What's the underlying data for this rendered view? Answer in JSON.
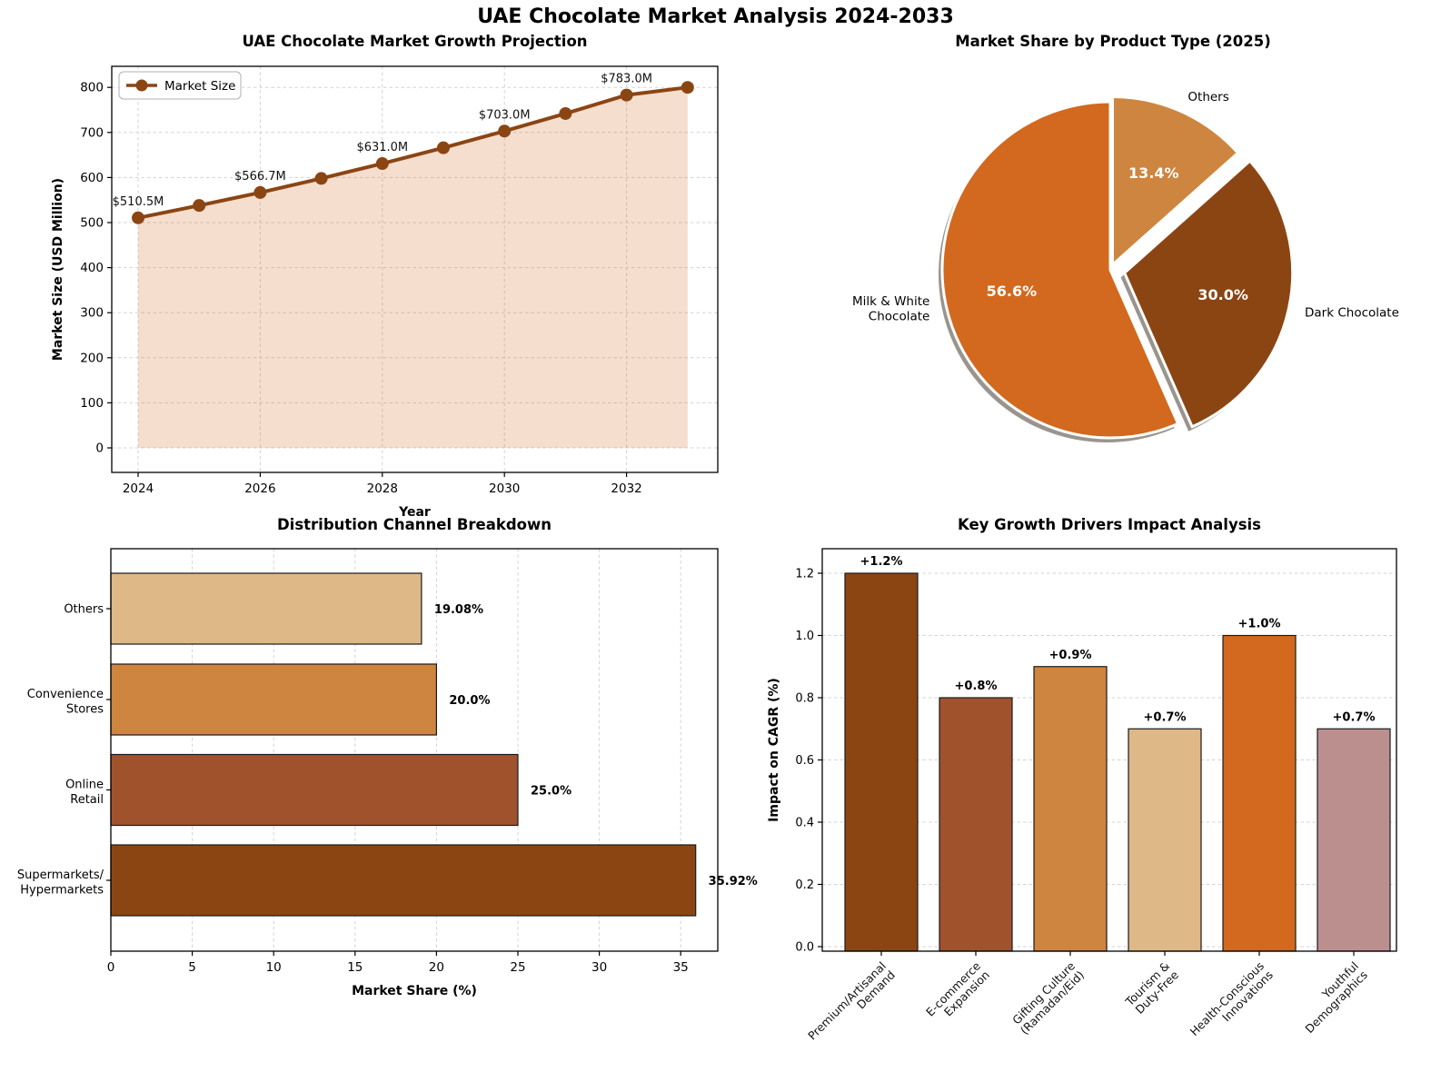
{
  "page_title": "UAE Chocolate Market Analysis 2024-2033",
  "chart_data": [
    {
      "type": "area",
      "title": "UAE Chocolate Market Growth Projection",
      "xlabel": "Year",
      "ylabel": "Market Size (USD Million)",
      "legend": [
        "Market Size"
      ],
      "x": [
        2024,
        2025,
        2026,
        2027,
        2028,
        2029,
        2030,
        2031,
        2032,
        2033
      ],
      "values": [
        510.5,
        538.0,
        566.7,
        598.0,
        631.0,
        666.0,
        703.0,
        742.0,
        783.0,
        800.0
      ],
      "annotations": [
        {
          "x": 2024,
          "text": "$510.5M"
        },
        {
          "x": 2026,
          "text": "$566.7M"
        },
        {
          "x": 2028,
          "text": "$631.0M"
        },
        {
          "x": 2030,
          "text": "$703.0M"
        },
        {
          "x": 2032,
          "text": "$783.0M"
        }
      ],
      "xticks": [
        2024,
        2026,
        2028,
        2030,
        2032
      ],
      "yticks": [
        0,
        100,
        200,
        300,
        400,
        500,
        600,
        700,
        800
      ],
      "ylim": [
        -55,
        846
      ],
      "grid": true,
      "legend_position": "upper left",
      "line_color": "#8B4513",
      "fill_color": "rgba(210,105,30,0.22)"
    },
    {
      "type": "pie",
      "title": "Market Share by Product Type (2025)",
      "labels": [
        "Others",
        "Dark Chocolate",
        "Milk & White\nChocolate"
      ],
      "values": [
        13.4,
        30.0,
        56.6
      ],
      "pct_labels": [
        "13.4%",
        "30.0%",
        "56.6%"
      ],
      "colors": [
        "#CD853F",
        "#8B4513",
        "#D2691E"
      ],
      "explode": [
        6,
        16,
        0
      ],
      "start_angle": 90,
      "direction": "clockwise",
      "shadow": true,
      "pct_color": "#ffffff"
    },
    {
      "type": "barh",
      "title": "Distribution Channel Breakdown",
      "xlabel": "Market Share (%)",
      "categories": [
        "Others",
        "Convenience\nStores",
        "Online\nRetail",
        "Supermarkets/\nHypermarkets"
      ],
      "values": [
        19.08,
        20.0,
        25.0,
        35.92
      ],
      "value_labels": [
        "19.08%",
        "20.0%",
        "25.0%",
        "35.92%"
      ],
      "colors": [
        "#DEB887",
        "#CD853F",
        "#A0522D",
        "#8B4513"
      ],
      "xticks": [
        0,
        5,
        10,
        15,
        20,
        25,
        30,
        35
      ],
      "xlim": [
        0,
        37.3
      ],
      "grid": true
    },
    {
      "type": "bar",
      "title": "Key Growth Drivers Impact Analysis",
      "ylabel": "Impact on CAGR (%)",
      "categories": [
        "Premium/Artisanal\nDemand",
        "E-commerce\nExpansion",
        "Gifting Culture\n(Ramadan/Eid)",
        "Tourism &\nDuty-Free",
        "Health-Conscious\nInnovations",
        "Youthful\nDemographics"
      ],
      "values": [
        1.2,
        0.8,
        0.9,
        0.7,
        1.0,
        0.7
      ],
      "value_labels": [
        "+1.2%",
        "+0.8%",
        "+0.9%",
        "+0.7%",
        "+1.0%",
        "+0.7%"
      ],
      "colors": [
        "#8B4513",
        "#A0522D",
        "#CD853F",
        "#DEB887",
        "#D2691E",
        "#BC8F8F"
      ],
      "yticks": [
        0.0,
        0.2,
        0.4,
        0.6,
        0.8,
        1.0,
        1.2
      ],
      "ylim": [
        0,
        1.279
      ],
      "grid": true
    }
  ]
}
